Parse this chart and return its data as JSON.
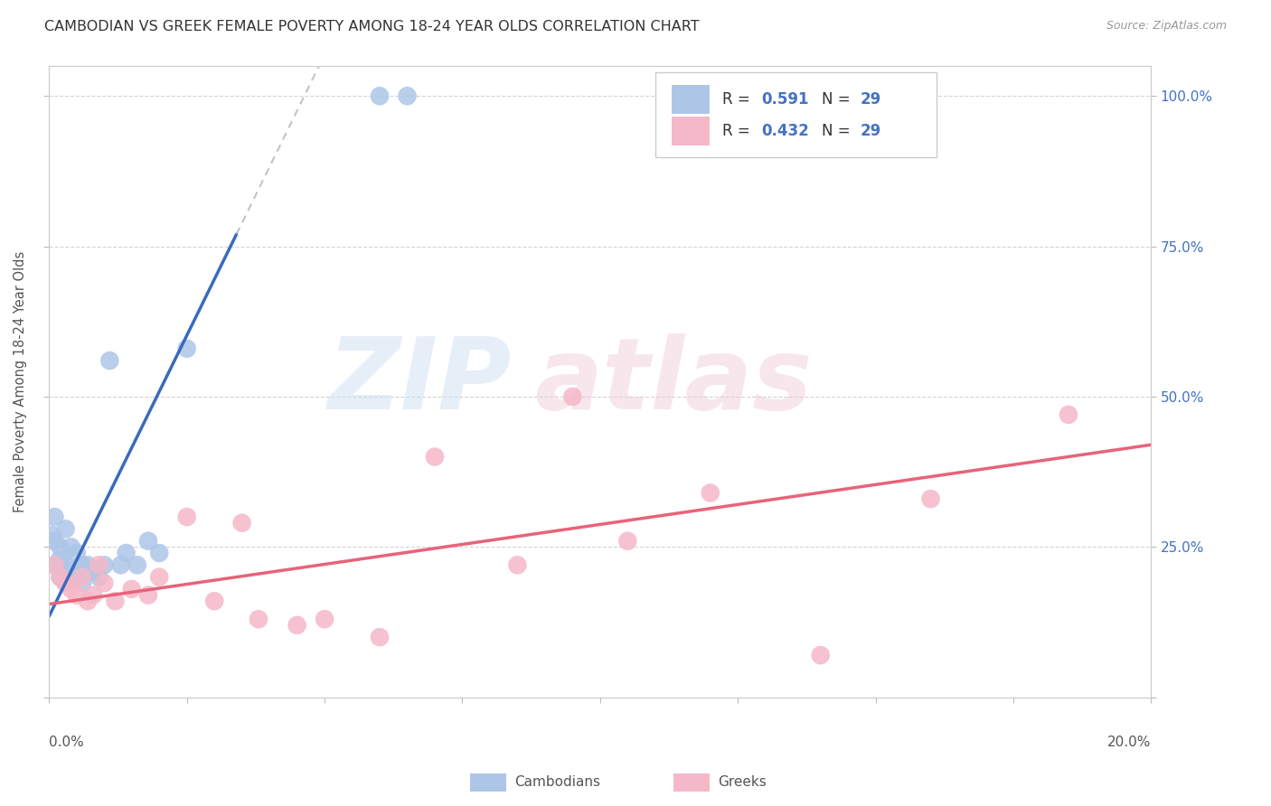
{
  "title": "CAMBODIAN VS GREEK FEMALE POVERTY AMONG 18-24 YEAR OLDS CORRELATION CHART",
  "source": "Source: ZipAtlas.com",
  "ylabel": "Female Poverty Among 18-24 Year Olds",
  "ytick_labels": [
    "",
    "25.0%",
    "50.0%",
    "75.0%",
    "100.0%"
  ],
  "ytick_values": [
    0.0,
    0.25,
    0.5,
    0.75,
    1.0
  ],
  "cambodian_color": "#adc6e8",
  "greek_color": "#f5b8c8",
  "trend_blue": "#3a6abf",
  "trend_pink": "#e8637a",
  "cambodian_x": [
    0.0005,
    0.001,
    0.001,
    0.001,
    0.002,
    0.002,
    0.002,
    0.003,
    0.003,
    0.003,
    0.004,
    0.004,
    0.005,
    0.005,
    0.006,
    0.006,
    0.007,
    0.008,
    0.009,
    0.01,
    0.011,
    0.013,
    0.014,
    0.016,
    0.018,
    0.02,
    0.025,
    0.06,
    0.065
  ],
  "cambodian_y": [
    0.27,
    0.3,
    0.26,
    0.22,
    0.25,
    0.23,
    0.2,
    0.28,
    0.22,
    0.19,
    0.25,
    0.21,
    0.24,
    0.2,
    0.22,
    0.19,
    0.22,
    0.21,
    0.2,
    0.22,
    0.56,
    0.22,
    0.24,
    0.22,
    0.26,
    0.24,
    0.58,
    1.0,
    1.0
  ],
  "greek_x": [
    0.001,
    0.002,
    0.003,
    0.004,
    0.005,
    0.006,
    0.007,
    0.008,
    0.009,
    0.01,
    0.012,
    0.015,
    0.018,
    0.02,
    0.025,
    0.03,
    0.035,
    0.038,
    0.045,
    0.05,
    0.06,
    0.07,
    0.085,
    0.095,
    0.105,
    0.12,
    0.14,
    0.16,
    0.185
  ],
  "greek_y": [
    0.22,
    0.2,
    0.19,
    0.18,
    0.17,
    0.2,
    0.16,
    0.17,
    0.22,
    0.19,
    0.16,
    0.18,
    0.17,
    0.2,
    0.3,
    0.16,
    0.29,
    0.13,
    0.12,
    0.13,
    0.1,
    0.4,
    0.22,
    0.5,
    0.26,
    0.34,
    0.07,
    0.33,
    0.47
  ],
  "xmin": 0.0,
  "xmax": 0.2,
  "ymin": 0.0,
  "ymax": 1.05,
  "background_color": "#ffffff",
  "grid_color": "#d0d0d0",
  "blue_trend_x0": 0.0,
  "blue_trend_y0": 0.135,
  "blue_trend_x1": 0.034,
  "blue_trend_y1": 0.77,
  "pink_trend_x0": 0.0,
  "pink_trend_y0": 0.155,
  "pink_trend_x1": 0.2,
  "pink_trend_y1": 0.42
}
